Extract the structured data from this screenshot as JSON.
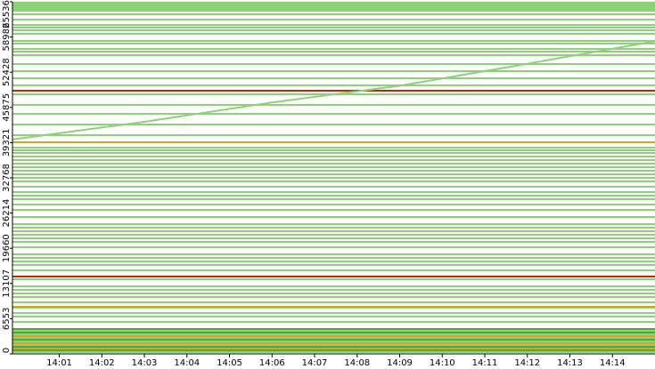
{
  "chart_data": {
    "type": "bands",
    "xlim": [
      -0.1,
      15
    ],
    "xticks": [
      {
        "value": 1,
        "label": "14:01"
      },
      {
        "value": 2,
        "label": "14:02"
      },
      {
        "value": 3,
        "label": "14:03"
      },
      {
        "value": 4,
        "label": "14:04"
      },
      {
        "value": 5,
        "label": "14:05"
      },
      {
        "value": 6,
        "label": "14:06"
      },
      {
        "value": 7,
        "label": "14:07"
      },
      {
        "value": 8,
        "label": "14:08"
      },
      {
        "value": 9,
        "label": "14:09"
      },
      {
        "value": 10,
        "label": "14:10"
      },
      {
        "value": 11,
        "label": "14:11"
      },
      {
        "value": 12,
        "label": "14:12"
      },
      {
        "value": 13,
        "label": "14:13"
      },
      {
        "value": 14,
        "label": "14:14"
      }
    ],
    "ylim": [
      0,
      65536
    ],
    "yticks": [
      0,
      6553,
      13107,
      19660,
      26214,
      32768,
      39321,
      45875,
      52428,
      58982,
      65536
    ],
    "series": [
      {
        "color": "#8fd07a",
        "values": [
          65400,
          65207,
          64876,
          64545,
          64214,
          63883,
          63221,
          62228,
          61235,
          60739,
          60242,
          59580,
          58256,
          57760,
          56767,
          56270,
          55608,
          53953,
          52629,
          51305,
          49981,
          48326,
          46340,
          44685,
          42699,
          40713,
          38396,
          37900,
          37403,
          36741,
          36079,
          35417,
          34755,
          34093,
          33431,
          32769,
          32107,
          31114,
          30121,
          29459,
          28797,
          27804,
          26811,
          25487,
          24163,
          23501,
          22839,
          22177,
          21515,
          20853,
          19860,
          18536,
          17874,
          17212,
          16550,
          15557,
          13902,
          12578,
          11916,
          11254,
          10592,
          9599,
          8606,
          7613,
          6951,
          5958,
          4634,
          4303,
          3972,
          3641,
          3310,
          2979,
          2648,
          2317,
          1986,
          1655,
          1324,
          993,
          662,
          331
        ]
      },
      {
        "color": "#4fa83a",
        "values": [
          4634,
          3972,
          3310,
          2648,
          1986,
          1324,
          662
        ]
      },
      {
        "color": "#e0a020",
        "values": [
          39389,
          8772,
          3310,
          1986,
          993
        ]
      },
      {
        "color": "#cc2200",
        "values": [
          48988,
          14399
        ]
      }
    ],
    "trend": {
      "color": "#8fd07a",
      "x": [
        -0.1,
        3,
        6,
        9,
        12,
        15
      ],
      "y": [
        39900,
        43200,
        46800,
        49900,
        54000,
        58200
      ]
    }
  }
}
